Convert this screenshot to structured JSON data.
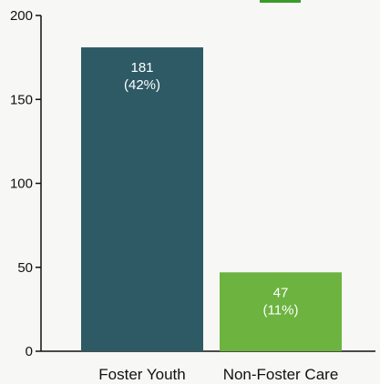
{
  "chart_data": {
    "type": "bar",
    "categories": [
      "Foster Youth",
      "Non-Foster Care"
    ],
    "values": [
      181,
      47
    ],
    "percent_labels": [
      "(42%)",
      "(11%)"
    ],
    "ylim": [
      0,
      200
    ],
    "yticks": [
      0,
      50,
      100,
      150,
      200
    ],
    "bar_colors": [
      "#2e5a66",
      "#6cb33f"
    ],
    "grid": false,
    "title": "",
    "xlabel": "",
    "ylabel": ""
  }
}
